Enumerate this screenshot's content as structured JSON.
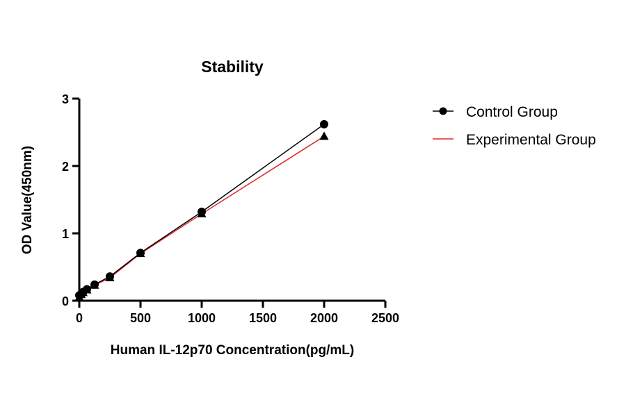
{
  "chart_data": {
    "type": "line",
    "title": "Stability",
    "xlabel": "Human IL-12p70 Concentration(pg/mL)",
    "ylabel": "OD Value(450nm)",
    "xlim": [
      0,
      2500
    ],
    "ylim": [
      0,
      3
    ],
    "xticks": [
      0,
      500,
      1000,
      1500,
      2000,
      2500
    ],
    "yticks": [
      0,
      1,
      2,
      3
    ],
    "grid": false,
    "legend_position": "right",
    "x": [
      0,
      15.6,
      31.25,
      62.5,
      125,
      250,
      500,
      1000,
      2000
    ],
    "series": [
      {
        "name": "Control Group",
        "color": "#000000",
        "marker": "circle",
        "values": [
          0.08,
          0.1,
          0.13,
          0.17,
          0.24,
          0.36,
          0.71,
          1.32,
          2.62
        ]
      },
      {
        "name": "Experimental Group",
        "color": "#e0262b",
        "marker": "triangle",
        "values": [
          0.05,
          0.09,
          0.12,
          0.16,
          0.23,
          0.34,
          0.7,
          1.29,
          2.44
        ]
      }
    ]
  }
}
